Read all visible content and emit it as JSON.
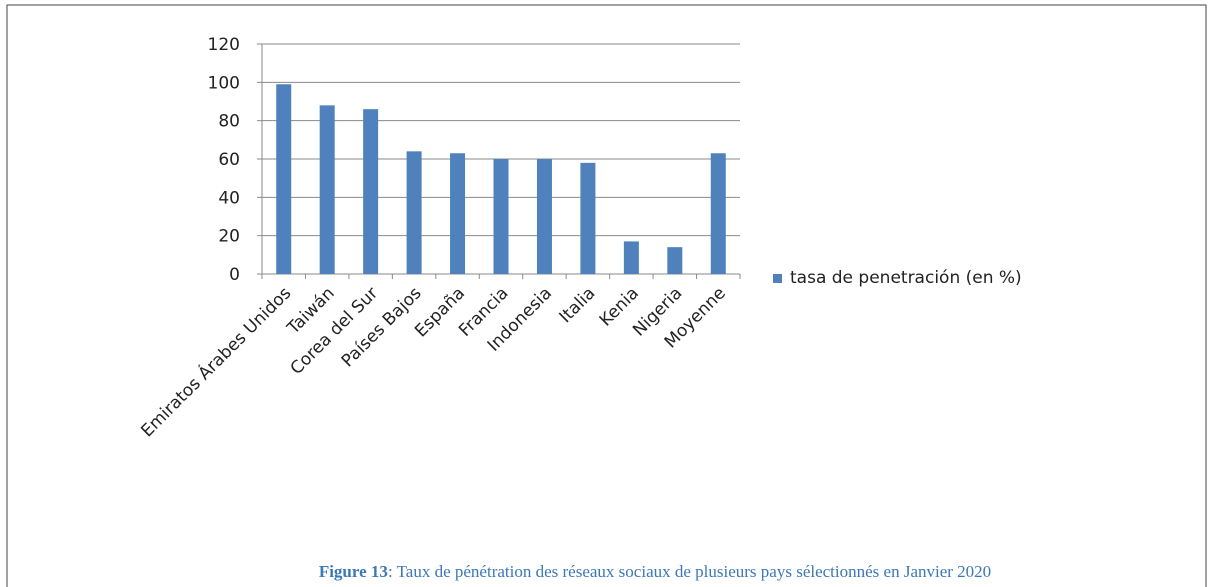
{
  "chart_data": {
    "type": "bar",
    "categories": [
      "Emiratos Árabes Unidos",
      "Taiwán",
      "Corea del Sur",
      "Países Bajos",
      "España",
      "Francia",
      "Indonesia",
      "Italia",
      "Kenia",
      "Nigeria",
      "Moyenne"
    ],
    "series": [
      {
        "name": "tasa de penetración (en %)",
        "color": "#4f81bd",
        "values": [
          99,
          88,
          86,
          64,
          63,
          60,
          60,
          58,
          17,
          14,
          63
        ]
      }
    ],
    "ylim": [
      0,
      120
    ],
    "yticks": [
      0,
      20,
      40,
      60,
      80,
      100,
      120
    ],
    "grid": true,
    "legend": "right"
  },
  "caption": {
    "label": "Figure 13",
    "text": ": Taux de pénétration des réseaux sociaux de plusieurs pays sélectionnés en Janvier 2020"
  }
}
